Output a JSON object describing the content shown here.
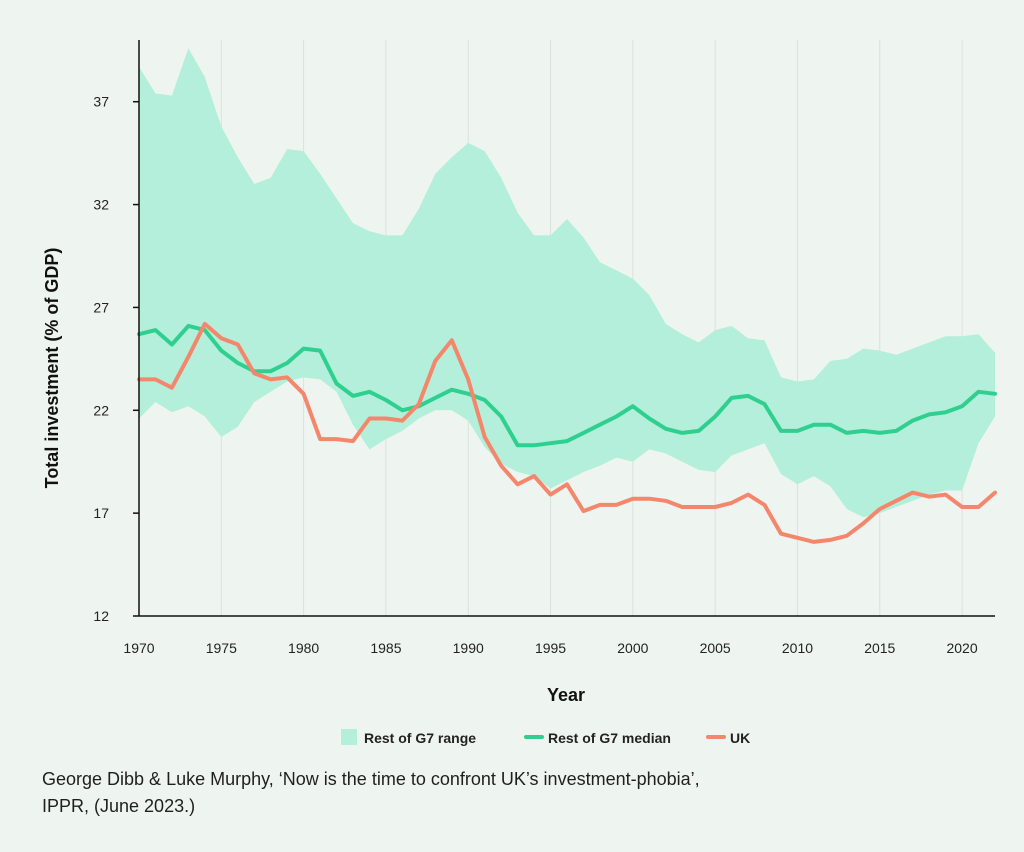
{
  "chart_data": {
    "type": "line",
    "xlabel": "Year",
    "ylabel": "Total investment (% of GDP)",
    "xlim": [
      1970,
      2022
    ],
    "ylim": [
      12,
      40
    ],
    "x_ticks": [
      1970,
      1975,
      1980,
      1985,
      1990,
      1995,
      2000,
      2005,
      2010,
      2015,
      2020
    ],
    "y_ticks": [
      12,
      17,
      22,
      27,
      32,
      37
    ],
    "grid": "vertical",
    "legend_placement": "bottom",
    "x": [
      1970,
      1971,
      1972,
      1973,
      1974,
      1975,
      1976,
      1977,
      1978,
      1979,
      1980,
      1981,
      1982,
      1983,
      1984,
      1985,
      1986,
      1987,
      1988,
      1989,
      1990,
      1991,
      1992,
      1993,
      1994,
      1995,
      1996,
      1997,
      1998,
      1999,
      2000,
      2001,
      2002,
      2003,
      2004,
      2005,
      2006,
      2007,
      2008,
      2009,
      2010,
      2011,
      2012,
      2013,
      2014,
      2015,
      2016,
      2017,
      2018,
      2019,
      2020,
      2021,
      2022
    ],
    "band": {
      "name": "Rest of G7 range",
      "color": "#b3efdb",
      "upper": [
        38.7,
        37.4,
        37.3,
        39.6,
        38.2,
        35.8,
        34.3,
        33.0,
        33.3,
        34.7,
        34.6,
        33.5,
        32.3,
        31.1,
        30.7,
        30.5,
        30.5,
        31.8,
        33.5,
        34.3,
        35.0,
        34.6,
        33.3,
        31.6,
        30.5,
        30.5,
        31.3,
        30.4,
        29.2,
        28.8,
        28.4,
        27.6,
        26.2,
        25.7,
        25.3,
        25.9,
        26.1,
        25.5,
        25.4,
        23.6,
        23.4,
        23.5,
        24.4,
        24.5,
        25.0,
        24.9,
        24.7,
        25.0,
        25.3,
        25.6,
        25.6,
        25.7,
        24.8
      ],
      "lower": [
        21.6,
        22.4,
        21.9,
        22.2,
        21.7,
        20.7,
        21.2,
        22.4,
        22.9,
        23.4,
        23.6,
        23.5,
        22.9,
        21.3,
        20.1,
        20.6,
        21.0,
        21.6,
        22.0,
        22.0,
        21.5,
        20.2,
        19.4,
        19.0,
        18.8,
        18.2,
        18.6,
        19.0,
        19.3,
        19.7,
        19.5,
        20.1,
        19.9,
        19.5,
        19.1,
        19.0,
        19.8,
        20.1,
        20.4,
        18.9,
        18.4,
        18.8,
        18.3,
        17.2,
        16.8,
        17.0,
        17.3,
        17.6,
        17.9,
        18.1,
        18.1,
        20.4,
        21.7
      ]
    },
    "series": [
      {
        "name": "Rest of G7 median",
        "color": "#2fd08f",
        "values": [
          25.7,
          25.9,
          25.2,
          26.1,
          25.9,
          24.9,
          24.3,
          23.9,
          23.9,
          24.3,
          25.0,
          24.9,
          23.3,
          22.7,
          22.9,
          22.5,
          22.0,
          22.2,
          22.6,
          23.0,
          22.8,
          22.5,
          21.7,
          20.3,
          20.3,
          20.4,
          20.5,
          20.9,
          21.3,
          21.7,
          22.2,
          21.6,
          21.1,
          20.9,
          21.0,
          21.7,
          22.6,
          22.7,
          22.3,
          21.0,
          21.0,
          21.3,
          21.3,
          20.9,
          21.0,
          20.9,
          21.0,
          21.5,
          21.8,
          21.9,
          22.2,
          22.9,
          22.8
        ]
      },
      {
        "name": "UK",
        "color": "#f4876b",
        "values": [
          23.5,
          23.5,
          23.1,
          24.6,
          26.2,
          25.5,
          25.2,
          23.8,
          23.5,
          23.6,
          22.8,
          20.6,
          20.6,
          20.5,
          21.6,
          21.6,
          21.5,
          22.3,
          24.4,
          25.4,
          23.5,
          20.7,
          19.3,
          18.4,
          18.8,
          17.9,
          18.4,
          17.1,
          17.4,
          17.4,
          17.7,
          17.7,
          17.6,
          17.3,
          17.3,
          17.3,
          17.5,
          17.9,
          17.4,
          16.0,
          15.8,
          15.6,
          15.7,
          15.9,
          16.5,
          17.2,
          17.6,
          18.0,
          17.8,
          17.9,
          17.3,
          17.3,
          18.0
        ]
      }
    ]
  },
  "source": {
    "line1": "George Dibb & Luke Murphy, ‘Now is the time to confront UK’s investment-phobia’,",
    "line2": "IPPR, (June 2023.)"
  }
}
